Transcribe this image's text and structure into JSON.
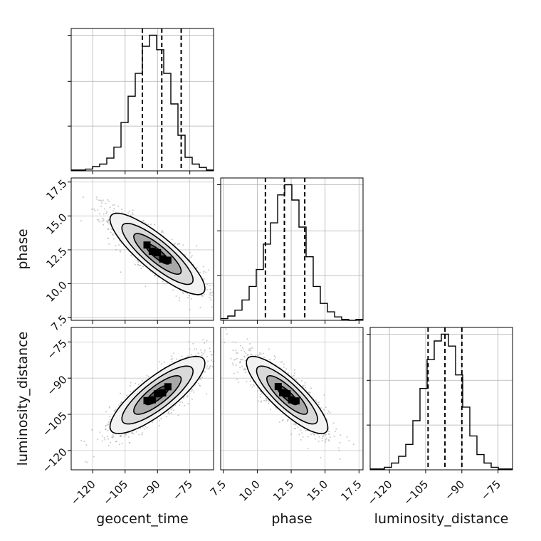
{
  "chart_data": {
    "type": "corner",
    "parameters": [
      "geocent_time",
      "phase",
      "luminosity_distance"
    ],
    "axis_labels": {
      "geocent_time": "geocent_time",
      "phase": "phase",
      "luminosity_distance": "luminosity_distance"
    },
    "ranges": {
      "geocent_time": [
        -130,
        -64
      ],
      "phase": [
        7.3,
        17.8
      ],
      "luminosity_distance": [
        -128,
        -69
      ]
    },
    "ticks": {
      "geocent_time": [
        -120,
        -105,
        -90,
        -75
      ],
      "phase": [
        7.5,
        10.0,
        12.5,
        15.0,
        17.5
      ],
      "luminosity_distance": [
        -120,
        -105,
        -90,
        -75
      ]
    },
    "tick_labels": {
      "geocent_time": [
        "−120",
        "−105",
        "−90",
        "−75"
      ],
      "phase": [
        "7.5",
        "10.0",
        "12.5",
        "15.0",
        "17.5"
      ],
      "luminosity_distance": [
        "−120",
        "−105",
        "−90",
        "−75"
      ]
    },
    "grid": true,
    "quantile_lines": {
      "geocent_time": [
        -97,
        -88,
        -79
      ],
      "phase": [
        10.6,
        12.0,
        13.5
      ],
      "luminosity_distance": [
        -104,
        -97,
        -90
      ]
    },
    "histograms": {
      "geocent_time": {
        "bin_edges": [
          -130,
          -126.7,
          -123.4,
          -120.1,
          -116.8,
          -113.5,
          -110.2,
          -106.9,
          -103.6,
          -100.3,
          -97.0,
          -93.7,
          -90.4,
          -87.1,
          -83.8,
          -80.5,
          -77.2,
          -73.9,
          -70.6,
          -67.3,
          -64.0
        ],
        "counts": [
          1,
          1,
          2,
          5,
          8,
          15,
          28,
          57,
          88,
          115,
          147,
          160,
          143,
          115,
          79,
          42,
          16,
          8,
          4,
          1
        ]
      },
      "phase": {
        "bin_edges": [
          7.3,
          7.825,
          8.35,
          8.875,
          9.4,
          9.925,
          10.45,
          10.975,
          11.5,
          12.025,
          12.55,
          13.075,
          13.6,
          14.125,
          14.65,
          15.175,
          15.7,
          16.225,
          16.75,
          17.275,
          17.8
        ],
        "counts": [
          2,
          5,
          12,
          24,
          40,
          60,
          90,
          115,
          148,
          160,
          142,
          110,
          75,
          40,
          20,
          10,
          4,
          1,
          0,
          1
        ]
      },
      "luminosity_distance": {
        "bin_edges": [
          -128,
          -125.05,
          -122.1,
          -119.15,
          -116.2,
          -113.25,
          -110.3,
          -107.35,
          -104.4,
          -101.45,
          -98.5,
          -95.55,
          -92.6,
          -89.65,
          -86.7,
          -83.75,
          -80.8,
          -77.85,
          -74.9,
          -71.95,
          -69.0
        ],
        "counts": [
          1,
          1,
          3,
          8,
          16,
          30,
          58,
          96,
          130,
          152,
          160,
          146,
          112,
          74,
          40,
          18,
          8,
          3,
          1,
          1
        ]
      }
    },
    "pairs": [
      {
        "x": "geocent_time",
        "y": "phase",
        "mean": [
          -90,
          12.2
        ],
        "std": [
          11,
          1.5
        ],
        "corr": -0.85
      },
      {
        "x": "geocent_time",
        "y": "luminosity_distance",
        "mean": [
          -90,
          -97
        ],
        "std": [
          11,
          8
        ],
        "corr": 0.82
      },
      {
        "x": "phase",
        "y": "luminosity_distance",
        "mean": [
          12.2,
          -97
        ],
        "std": [
          1.5,
          8
        ],
        "corr": -0.84
      }
    ],
    "contour_levels_sigma": [
      0.5,
      1.0,
      1.5,
      2.0
    ]
  }
}
